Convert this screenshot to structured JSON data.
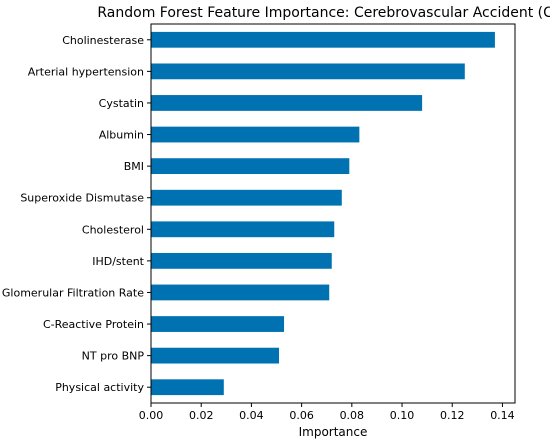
{
  "chart_data": {
    "type": "bar",
    "orientation": "horizontal",
    "title": "Random Forest Feature Importance: Cerebrovascular Accident (CVA)",
    "xlabel": "Importance",
    "ylabel": "",
    "xlim": [
      0,
      0.145
    ],
    "xticks": [
      0.0,
      0.02,
      0.04,
      0.06,
      0.08,
      0.1,
      0.12,
      0.14
    ],
    "xtick_labels": [
      "0.00",
      "0.02",
      "0.04",
      "0.06",
      "0.08",
      "0.10",
      "0.12",
      "0.14"
    ],
    "grid": false,
    "bar_color": "#0072b2",
    "categories": [
      "Cholinesterase",
      "Arterial hypertension",
      "Cystatin",
      "Albumin",
      "BMI",
      "Superoxide Dismutase",
      "Cholesterol",
      "IHD/stent",
      "Glomerular Filtration Rate",
      "C-Reactive Protein",
      "NT pro BNP",
      "Physical activity"
    ],
    "values": [
      0.137,
      0.125,
      0.108,
      0.083,
      0.079,
      0.076,
      0.073,
      0.072,
      0.071,
      0.053,
      0.051,
      0.029
    ]
  }
}
